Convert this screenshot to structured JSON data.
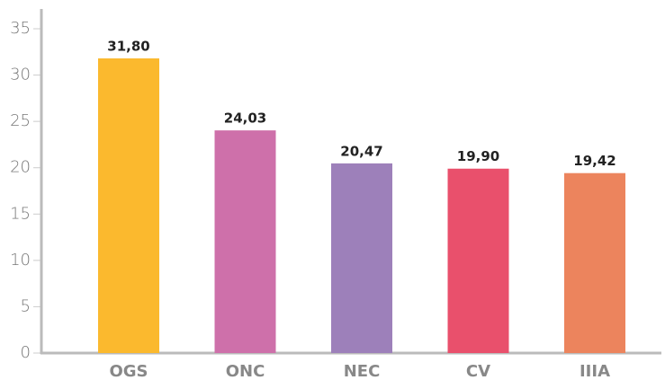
{
  "chart_data": {
    "type": "bar",
    "categories": [
      "OGS",
      "ONC",
      "NEC",
      "CV",
      "IIIA"
    ],
    "values": [
      31.8,
      24.03,
      20.47,
      19.9,
      19.42
    ],
    "value_labels": [
      "31,80",
      "24,03",
      "20,47",
      "19,90",
      "19,42"
    ],
    "colors": [
      "#fbb92e",
      "#ce70aa",
      "#9d80ba",
      "#e9506c",
      "#ec845d"
    ],
    "ylim": [
      0,
      35
    ],
    "yticks": [
      0,
      5,
      10,
      15,
      20,
      25,
      30,
      35
    ],
    "grid": false
  }
}
